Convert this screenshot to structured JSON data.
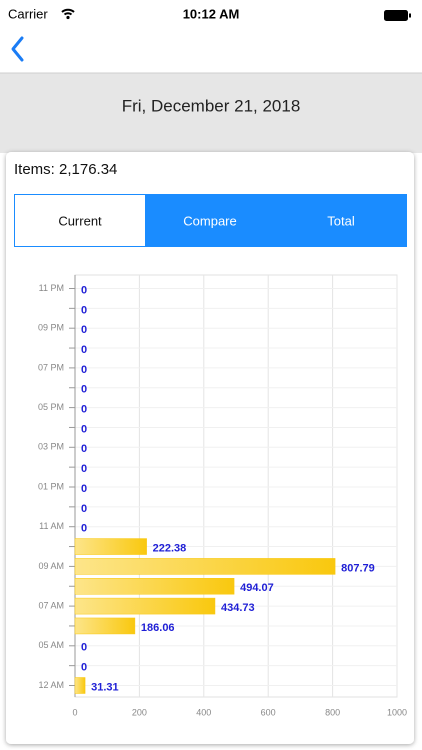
{
  "status_bar": {
    "carrier": "Carrier",
    "time": "10:12 AM"
  },
  "header": {
    "date": "Fri, December 21, 2018"
  },
  "card": {
    "items": "Items: 2,176.34",
    "segments": [
      "Current",
      "Compare",
      "Total"
    ]
  },
  "chart_data": {
    "type": "hbar",
    "categories": [
      "12 AM",
      null,
      "05 AM",
      null,
      "07 AM",
      null,
      "09 AM",
      null,
      "11 AM",
      null,
      "01 PM",
      null,
      "03 PM",
      null,
      "05 PM",
      null,
      "07 PM",
      null,
      "09 PM",
      null,
      "11 PM"
    ],
    "values": [
      31.31,
      0,
      0,
      186.06,
      434.73,
      494.07,
      807.79,
      222.38,
      0,
      0,
      0,
      0,
      0,
      0,
      0,
      0,
      0,
      0,
      0,
      0,
      0
    ],
    "color": "#f9c80e",
    "xlim": [
      0,
      1000
    ],
    "xticks": [
      0,
      200,
      400,
      600,
      800,
      1000
    ],
    "grid": true
  }
}
